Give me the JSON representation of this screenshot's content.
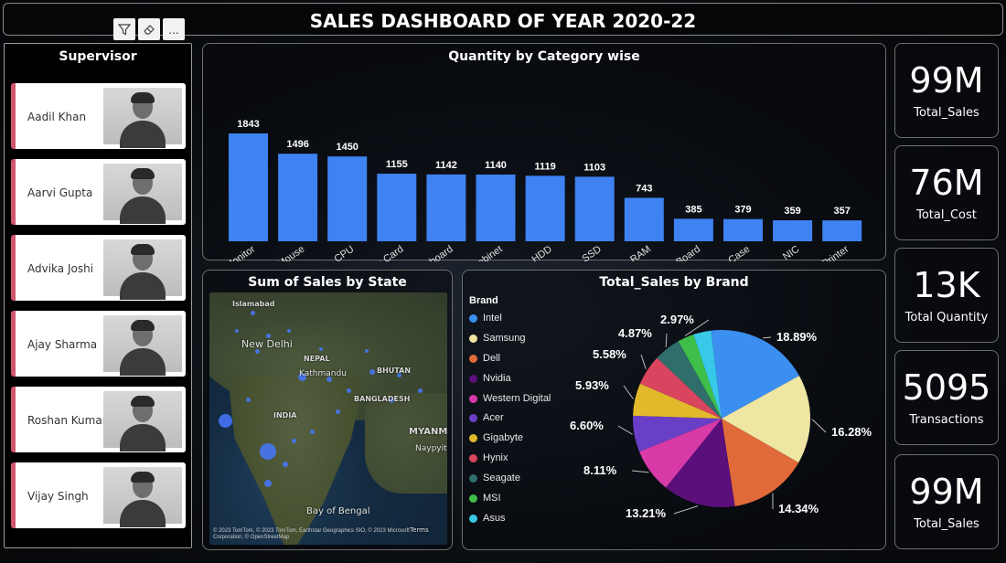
{
  "header": {
    "title": "SALES DASHBOARD OF YEAR 2020-22"
  },
  "toolbar": {
    "filter_icon": "filter-icon",
    "eraser_icon": "eraser-icon",
    "more_label": "..."
  },
  "supervisor": {
    "title": "Supervisor",
    "people": [
      {
        "name": "Aadil Khan"
      },
      {
        "name": "Aarvi Gupta"
      },
      {
        "name": "Advika Joshi"
      },
      {
        "name": "Ajay Sharma"
      },
      {
        "name": "Roshan Kumar"
      },
      {
        "name": "Vijay Singh"
      }
    ]
  },
  "map": {
    "title": "Sum of Sales by State",
    "labels": [
      "Islamabad",
      "New Delhi",
      "NEPAL",
      "Kathmandu",
      "BHUTAN",
      "BANGLADESH",
      "INDIA",
      "MYANMAR",
      "Naypyitaw",
      "Bay of Bengal"
    ],
    "credit": "© 2023 TomTom, © 2023 TomTom, Earthstar Geographics SIO, © 2023 Microsoft Corporation, © OpenStreetMap",
    "terms_label": "Terms"
  },
  "kpis": [
    {
      "value": "99M",
      "label": "Total_Sales"
    },
    {
      "value": "76M",
      "label": "Total_Cost"
    },
    {
      "value": "13K",
      "label": "Total Quantity"
    },
    {
      "value": "5095",
      "label": "Transactions"
    },
    {
      "value": "99M",
      "label": "Total_Sales"
    }
  ],
  "colors": {
    "bar": "#3f82f2",
    "accent_card": "#d0566c"
  },
  "chart_data": [
    {
      "type": "bar",
      "title": "Quantity by Category wise",
      "categories": [
        "Monitor",
        "Mouse",
        "CPU",
        "Graphic Card",
        "Keyboard",
        "Cabinet",
        "HDD",
        "SSD",
        "RAM",
        "MotherBoard",
        "Computer Case",
        "NIC",
        "Printer"
      ],
      "values": [
        1843,
        1496,
        1450,
        1155,
        1142,
        1140,
        1119,
        1103,
        743,
        385,
        379,
        359,
        357
      ],
      "data_labels": [
        "1843",
        "1496",
        "1450",
        "1155",
        "1142",
        "1140",
        "1119",
        "1103",
        "743",
        "385",
        "379",
        "359",
        "357"
      ],
      "ylim": [
        0,
        1843
      ],
      "grid": false
    },
    {
      "type": "pie",
      "title": "Total_Sales by Brand",
      "legend_title": "Brand",
      "legend_position": "left",
      "labels": [
        "Intel",
        "Samsung",
        "Dell",
        "Nvidia",
        "Western Digital",
        "Acer",
        "Gigabyte",
        "Hynix",
        "Seagate",
        "MSI",
        "Asus"
      ],
      "values": [
        18.89,
        16.28,
        14.34,
        13.21,
        8.11,
        6.6,
        5.93,
        5.58,
        4.87,
        2.97,
        3.22
      ],
      "data_labels": [
        "18.89%",
        "16.28%",
        "14.34%",
        "13.21%",
        "8.11%",
        "6.60%",
        "5.93%",
        "5.58%",
        "4.87%",
        "2.97%",
        ""
      ],
      "colors": [
        "#3b8ff0",
        "#efe6a4",
        "#e06a3a",
        "#5a0f7a",
        "#d83aa8",
        "#6a3fc7",
        "#e2b92a",
        "#d9445f",
        "#2f6e6a",
        "#3fbf4a",
        "#38c8e8"
      ]
    }
  ]
}
